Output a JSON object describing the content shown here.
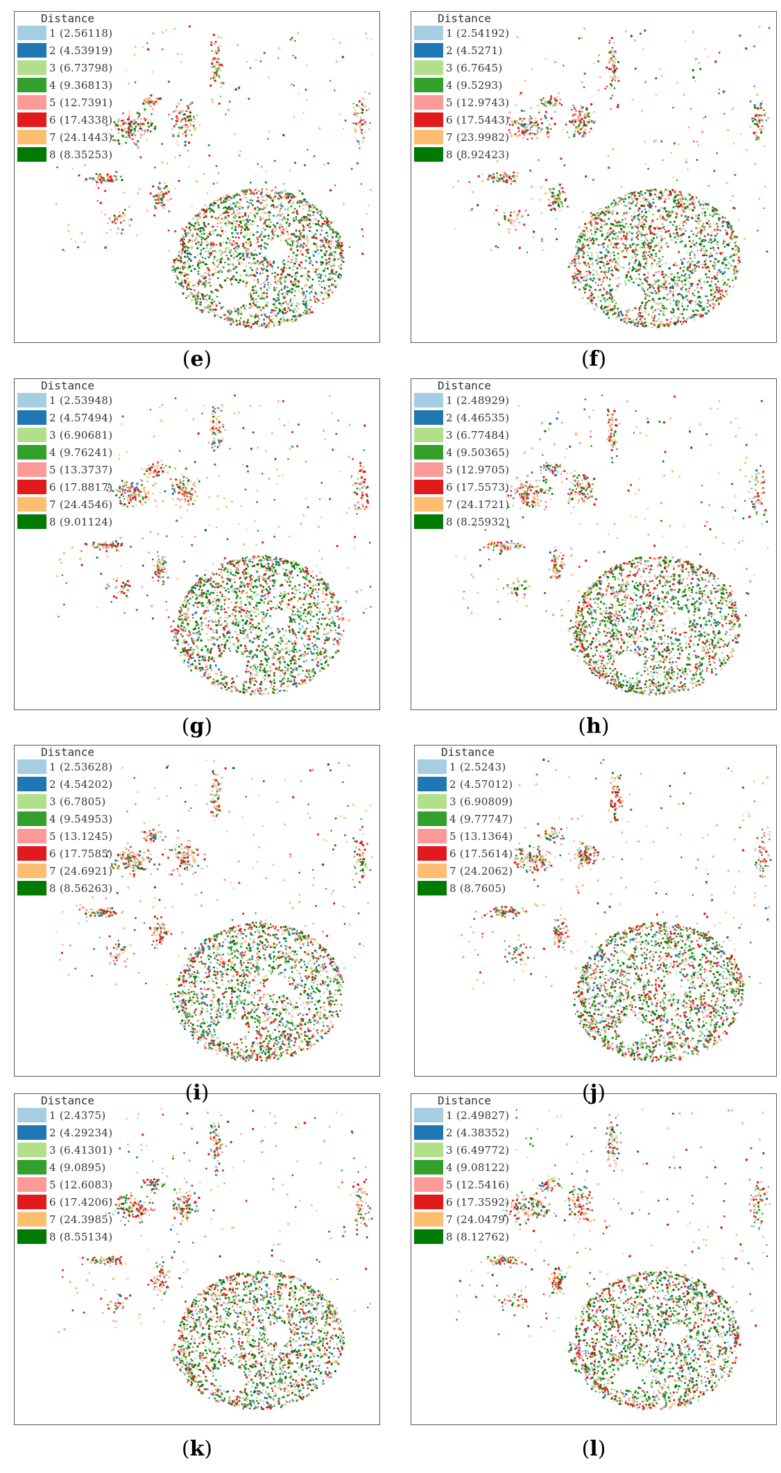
{
  "legend_title": "Distance",
  "class_colors": [
    "#a6cee3",
    "#1f78b4",
    "#b2df8a",
    "#33a02c",
    "#fb9a99",
    "#e31a1c",
    "#fdbf6f",
    "#007a00"
  ],
  "panels": [
    {
      "id": "e",
      "caption": "e",
      "legend": [
        "1 (2.56118)",
        "2 (4.53919)",
        "3 (6.73798)",
        "4 (9.36813)",
        "5 (12.7391)",
        "6 (17.4338)",
        "7 (24.1443)",
        "8 (8.35253)"
      ]
    },
    {
      "id": "f",
      "caption": "f",
      "legend": [
        "1 (2.54192)",
        "2 (4.5271)",
        "3 (6.7645)",
        "4 (9.5293)",
        "5 (12.9743)",
        "6 (17.5443)",
        "7 (23.9982)",
        "8 (8.92423)"
      ]
    },
    {
      "id": "g",
      "caption": "g",
      "legend": [
        "1 (2.53948)",
        "2 (4.57494)",
        "3 (6.90681)",
        "4 (9.76241)",
        "5 (13.3737)",
        "6 (17.8817)",
        "7 (24.4546)",
        "8 (9.01124)"
      ]
    },
    {
      "id": "h",
      "caption": "h",
      "legend": [
        "1 (2.48929)",
        "2 (4.46535)",
        "3 (6.77484)",
        "4 (9.50365)",
        "5 (12.9705)",
        "6 (17.5573)",
        "7 (24.1721)",
        "8 (8.25932)"
      ]
    },
    {
      "id": "i",
      "caption": "i",
      "legend": [
        "1 (2.53628)",
        "2 (4.54202)",
        "3 (6.7805)",
        "4 (9.54953)",
        "5 (13.1245)",
        "6 (17.7585)",
        "7 (24.6921)",
        "8 (8.56263)"
      ]
    },
    {
      "id": "j",
      "caption": "j",
      "legend": [
        "1 (2.5243)",
        "2 (4.57012)",
        "3 (6.90809)",
        "4 (9.77747)",
        "5 (13.1364)",
        "6 (17.5614)",
        "7 (24.2062)",
        "8 (8.7605)"
      ]
    },
    {
      "id": "k",
      "caption": "k",
      "legend": [
        "1 (2.4375)",
        "2 (4.29234)",
        "3 (6.41301)",
        "4 (9.0895)",
        "5 (12.6083)",
        "6 (17.4206)",
        "7 (24.3985)",
        "8 (8.55134)"
      ]
    },
    {
      "id": "l",
      "caption": "l",
      "legend": [
        "1 (2.49827)",
        "2 (4.38352)",
        "3 (6.49772)",
        "4 (9.08122)",
        "5 (12.5416)",
        "6 (17.3592)",
        "7 (24.0479)",
        "8 (8.12762)"
      ]
    }
  ]
}
